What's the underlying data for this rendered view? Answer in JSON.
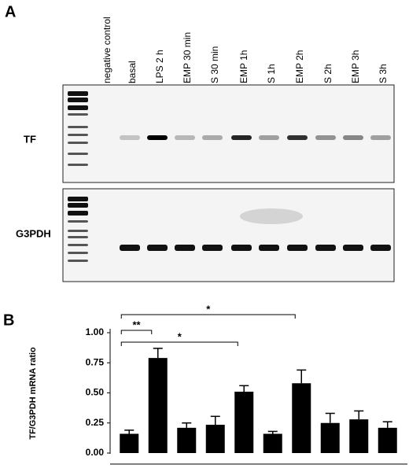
{
  "panel_a": {
    "label": "A",
    "lanes": [
      "negative control",
      "basal",
      "LPS 2 h",
      "EMP 30 min",
      "S 30 min",
      "EMP 1h",
      "S 1h",
      "EMP 2h",
      "S 2h",
      "EMP 3h",
      "S 3h"
    ],
    "gels": [
      "TF",
      "G3PDH"
    ]
  },
  "panel_b_label": "B",
  "chart_data": {
    "type": "bar",
    "y_label": "TF/G3PDH mRNA ratio",
    "categories": [
      null,
      null,
      null,
      null,
      null,
      null,
      null,
      null,
      null,
      null
    ],
    "values": [
      0.16,
      0.79,
      0.21,
      0.235,
      0.51,
      0.16,
      0.58,
      0.25,
      0.28,
      0.21
    ],
    "errors": [
      0.03,
      0.08,
      0.04,
      0.07,
      0.05,
      0.02,
      0.11,
      0.08,
      0.07,
      0.05
    ],
    "color": "#000000",
    "ylim": [
      0,
      1.0
    ],
    "yticks": [
      {
        "value": 0,
        "label": "0.00"
      },
      {
        "value": 0.25,
        "label": "0.25"
      },
      {
        "value": 0.5,
        "label": "0.50"
      },
      {
        "value": 0.75,
        "label": "0.75"
      },
      {
        "value": 1.0,
        "label": "1.00"
      }
    ],
    "significance": [
      {
        "label": "**",
        "between": [
          0,
          1
        ]
      },
      {
        "label": "*",
        "between": [
          0,
          4
        ]
      },
      {
        "label": "*",
        "between": [
          0,
          6
        ]
      }
    ]
  }
}
